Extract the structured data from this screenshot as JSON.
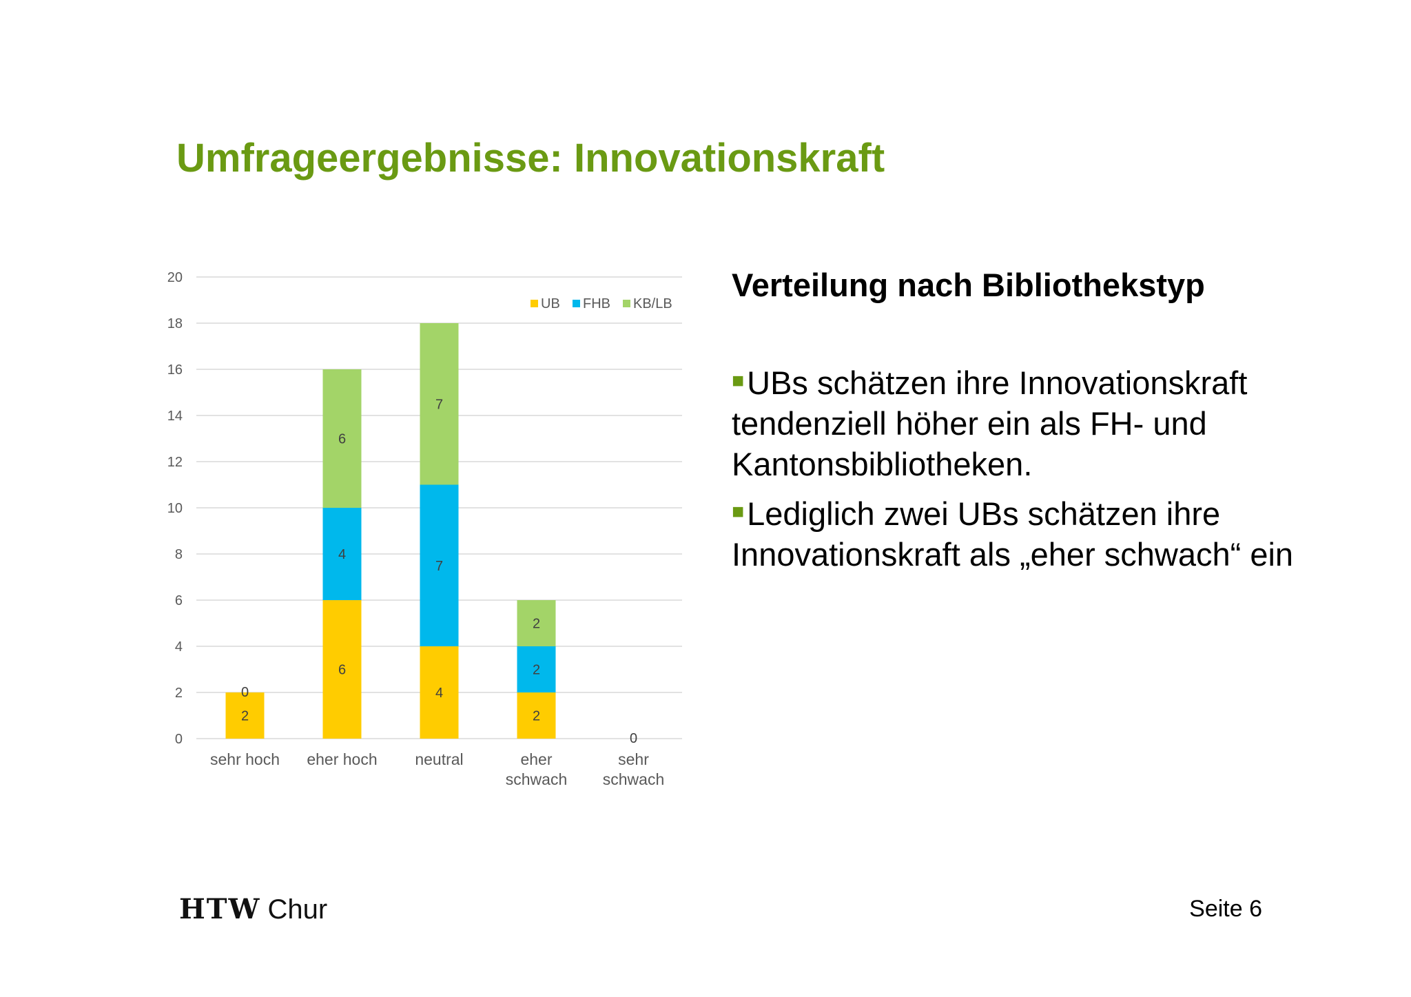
{
  "slide": {
    "title": "Umfrageergebnisse: Innovationskraft",
    "subtitle": "Verteilung nach Bibliothekstyp",
    "bullets": [
      "UBs schätzen ihre Innovationskraft tendenziell höher ein als FH- und Kantonsbibliotheken.",
      "Lediglich zwei UBs schätzen ihre Innovationskraft als „eher schwach“ ein"
    ],
    "bullet_color": "#6a9a13",
    "title_color": "#6a9a13"
  },
  "footer": {
    "logo_bold": "HTW",
    "logo_light": "Chur",
    "page": "Seite 6"
  },
  "chart_data": {
    "type": "bar",
    "stacked": true,
    "categories": [
      [
        "sehr hoch"
      ],
      [
        "eher hoch"
      ],
      [
        "neutral"
      ],
      [
        "eher",
        "schwach"
      ],
      [
        "sehr",
        "schwach"
      ]
    ],
    "series": [
      {
        "name": "UB",
        "color": "#ffcc00",
        "values": [
          2,
          6,
          4,
          2,
          0
        ]
      },
      {
        "name": "FHB",
        "color": "#00b8ec",
        "values": [
          0,
          4,
          7,
          2,
          0
        ]
      },
      {
        "name": "KB/LB",
        "color": "#a3d468",
        "values": [
          0,
          6,
          7,
          2,
          0
        ]
      }
    ],
    "segment_labels": [
      {
        "category": 0,
        "series": 0,
        "text": "2"
      },
      {
        "category": 0,
        "series": 1,
        "text": "0"
      },
      {
        "category": 1,
        "series": 0,
        "text": "6"
      },
      {
        "category": 1,
        "series": 1,
        "text": "4"
      },
      {
        "category": 1,
        "series": 2,
        "text": "6"
      },
      {
        "category": 2,
        "series": 0,
        "text": "4"
      },
      {
        "category": 2,
        "series": 1,
        "text": "7"
      },
      {
        "category": 2,
        "series": 2,
        "text": "7"
      },
      {
        "category": 3,
        "series": 0,
        "text": "2"
      },
      {
        "category": 3,
        "series": 1,
        "text": "2"
      },
      {
        "category": 3,
        "series": 2,
        "text": "2"
      },
      {
        "category": 4,
        "series": 0,
        "text": "0"
      }
    ],
    "yticks": [
      0,
      2,
      4,
      6,
      8,
      10,
      12,
      14,
      16,
      18,
      20
    ],
    "ylim": [
      0,
      20
    ],
    "grid": true,
    "legend_position": "top-right"
  }
}
